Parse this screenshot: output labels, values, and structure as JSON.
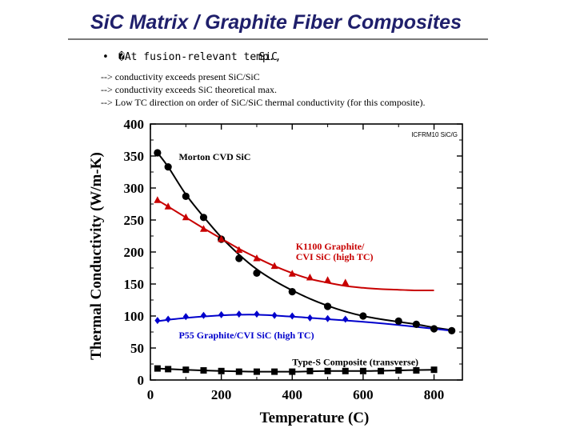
{
  "slide": {
    "title": "SiC Matrix / Graphite Fiber Composites",
    "bullet_marker": "•",
    "bullet_text": "�At fusion-relevant temp.,",
    "bullet_overlap": "SiC",
    "lines": [
      "--> conductivity exceeds present SiC/SiC",
      "--> conductivity exceeds SiC theoretical max.",
      "--> Low TC direction on order of SiC/SiC thermal conductivity (for this composite)."
    ]
  },
  "chart_data": {
    "type": "line",
    "xlabel": "Temperature (C)",
    "ylabel": "Thermal Conductivity (W/m-K)",
    "xlim": [
      0,
      880
    ],
    "ylim": [
      0,
      400
    ],
    "x_ticks": [
      0,
      200,
      400,
      600,
      800
    ],
    "y_ticks": [
      0,
      50,
      100,
      150,
      200,
      250,
      300,
      350,
      400
    ],
    "corner_label": "ICFRM10 SiC/G",
    "series": [
      {
        "name": "Morton CVD SiC",
        "color": "#000000",
        "marker": "circle",
        "points": [
          [
            20,
            355
          ],
          [
            50,
            333
          ],
          [
            100,
            287
          ],
          [
            150,
            254
          ],
          [
            200,
            220
          ],
          [
            250,
            190
          ],
          [
            300,
            167
          ],
          [
            400,
            138
          ],
          [
            500,
            115
          ],
          [
            600,
            100
          ],
          [
            700,
            92
          ],
          [
            750,
            87
          ],
          [
            800,
            80
          ],
          [
            850,
            77
          ]
        ],
        "curve": [
          [
            20,
            355
          ],
          [
            50,
            333
          ],
          [
            100,
            290
          ],
          [
            150,
            255
          ],
          [
            200,
            223
          ],
          [
            250,
            196
          ],
          [
            300,
            173
          ],
          [
            350,
            155
          ],
          [
            400,
            140
          ],
          [
            450,
            127
          ],
          [
            500,
            116
          ],
          [
            550,
            107
          ],
          [
            600,
            100
          ],
          [
            650,
            95
          ],
          [
            700,
            91
          ],
          [
            750,
            87
          ],
          [
            800,
            82
          ],
          [
            850,
            78
          ]
        ]
      },
      {
        "name": "K1100 Graphite/ CVI SiC (high TC)",
        "color": "#c80000",
        "marker": "triangle",
        "points": [
          [
            20,
            281
          ],
          [
            50,
            271
          ],
          [
            100,
            254
          ],
          [
            150,
            236
          ],
          [
            200,
            220
          ],
          [
            250,
            203
          ],
          [
            300,
            190
          ],
          [
            350,
            178
          ],
          [
            400,
            166
          ],
          [
            450,
            160
          ],
          [
            500,
            156
          ],
          [
            550,
            152
          ]
        ],
        "curve": [
          [
            20,
            281
          ],
          [
            50,
            271
          ],
          [
            100,
            254
          ],
          [
            150,
            237
          ],
          [
            200,
            221
          ],
          [
            250,
            205
          ],
          [
            300,
            191
          ],
          [
            350,
            178
          ],
          [
            400,
            167
          ],
          [
            450,
            158
          ],
          [
            500,
            152
          ],
          [
            550,
            147
          ],
          [
            600,
            144
          ],
          [
            650,
            142
          ],
          [
            700,
            141
          ],
          [
            750,
            140
          ],
          [
            800,
            140
          ]
        ]
      },
      {
        "name": "P55 Graphite/CVI SiC (high TC)",
        "color": "#0000cc",
        "marker": "diamond",
        "points": [
          [
            20,
            93
          ],
          [
            50,
            95
          ],
          [
            100,
            99
          ],
          [
            150,
            101
          ],
          [
            200,
            102
          ],
          [
            250,
            103
          ],
          [
            300,
            103
          ],
          [
            350,
            101
          ],
          [
            400,
            100
          ],
          [
            450,
            97
          ],
          [
            500,
            96
          ],
          [
            550,
            95
          ]
        ],
        "curve": [
          [
            20,
            92
          ],
          [
            100,
            97
          ],
          [
            200,
            101
          ],
          [
            300,
            102
          ],
          [
            400,
            99
          ],
          [
            500,
            95
          ],
          [
            600,
            91
          ],
          [
            700,
            86
          ],
          [
            800,
            80
          ],
          [
            850,
            77
          ]
        ]
      },
      {
        "name": "Type-S Composite (transverse)",
        "color": "#000000",
        "marker": "square",
        "points": [
          [
            20,
            18
          ],
          [
            50,
            17
          ],
          [
            100,
            16
          ],
          [
            150,
            15
          ],
          [
            200,
            14
          ],
          [
            250,
            13
          ],
          [
            300,
            13
          ],
          [
            350,
            13
          ],
          [
            400,
            13
          ],
          [
            450,
            14
          ],
          [
            500,
            14
          ],
          [
            550,
            14
          ],
          [
            600,
            14
          ],
          [
            650,
            14
          ],
          [
            700,
            15
          ],
          [
            750,
            15
          ],
          [
            800,
            16
          ]
        ],
        "curve": [
          [
            20,
            18
          ],
          [
            100,
            16
          ],
          [
            200,
            14
          ],
          [
            300,
            13
          ],
          [
            400,
            13
          ],
          [
            500,
            14
          ],
          [
            600,
            14
          ],
          [
            700,
            15
          ],
          [
            800,
            16
          ]
        ]
      }
    ],
    "annotations": [
      {
        "lines": [
          "Morton CVD SiC"
        ],
        "x": 80,
        "y": 344,
        "color": "#000000"
      },
      {
        "lines": [
          "K1100 Graphite/",
          "CVI SiC (high TC)"
        ],
        "x": 410,
        "y": 204,
        "color": "#c80000"
      },
      {
        "lines": [
          "P55 Graphite/CVI SiC (high TC)"
        ],
        "x": 80,
        "y": 65,
        "color": "#0000cc"
      },
      {
        "lines": [
          "Type-S Composite (transverse)"
        ],
        "x": 400,
        "y": 23,
        "color": "#000000"
      }
    ]
  }
}
